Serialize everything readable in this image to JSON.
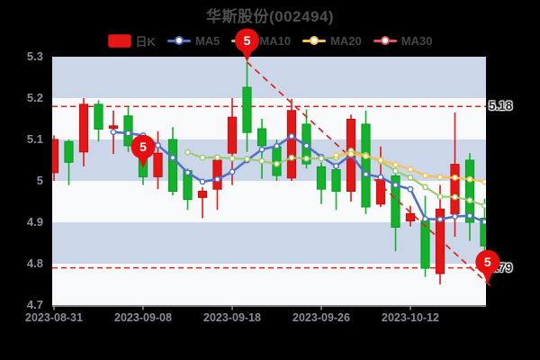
{
  "title": "华斯股份(002494)",
  "legend": [
    {
      "label": "日K",
      "type": "rect",
      "color": "#e51616"
    },
    {
      "label": "MA5",
      "type": "line",
      "color": "#5470c6"
    },
    {
      "label": "MA10",
      "type": "line",
      "color": "#9dcc6d"
    },
    {
      "label": "MA20",
      "type": "line",
      "color": "#f7c04f"
    },
    {
      "label": "MA30",
      "type": "line",
      "color": "#e25562"
    }
  ],
  "chart_data": {
    "type": "candlestick",
    "title": "华斯股份(002494)",
    "ylim": [
      4.7,
      5.3
    ],
    "grid": "striped-bands",
    "legend_position": "top-center",
    "y_ticks": [
      {
        "label": "5.3",
        "value": 5.3
      },
      {
        "label": "5.2",
        "value": 5.2
      },
      {
        "label": "5.1",
        "value": 5.1
      },
      {
        "label": "5",
        "value": 5.0
      },
      {
        "label": "4.9",
        "value": 4.9
      },
      {
        "label": "4.8",
        "value": 4.8
      },
      {
        "label": "4.7",
        "value": 4.7
      }
    ],
    "x_ticks": [
      {
        "label": "2023-08-31",
        "index": 0
      },
      {
        "label": "2023-09-08",
        "index": 6
      },
      {
        "label": "2023-09-18",
        "index": 12
      },
      {
        "label": "2023-09-26",
        "index": 18
      },
      {
        "label": "2023-10-12",
        "index": 24
      }
    ],
    "up_color": "#e51616",
    "down_color": "#12b22b",
    "band_colors": [
      "#ccd6e9",
      "#f8f9fb"
    ],
    "candles": [
      [
        5.02,
        5.1,
        5.0,
        5.11
      ],
      [
        5.095,
        5.045,
        4.99,
        5.1
      ],
      [
        5.07,
        5.185,
        5.035,
        5.2
      ],
      [
        5.185,
        5.125,
        5.095,
        5.195
      ],
      [
        5.127,
        5.133,
        5.065,
        5.17
      ],
      [
        5.157,
        5.085,
        5.07,
        5.18
      ],
      [
        5.06,
        5.01,
        4.99,
        5.08
      ],
      [
        5.01,
        5.067,
        4.98,
        5.12
      ],
      [
        5.1,
        4.975,
        4.965,
        5.13
      ],
      [
        5.025,
        4.955,
        4.93,
        5.03
      ],
      [
        4.96,
        4.975,
        4.91,
        4.985
      ],
      [
        4.98,
        5.05,
        4.93,
        5.056
      ],
      [
        5.067,
        5.154,
        4.99,
        5.2
      ],
      [
        5.226,
        5.117,
        5.07,
        5.287
      ],
      [
        5.126,
        5.085,
        5.005,
        5.15
      ],
      [
        5.083,
        5.013,
        5.0,
        5.1
      ],
      [
        5.007,
        5.17,
        5.0,
        5.198
      ],
      [
        5.137,
        5.041,
        5.03,
        5.173
      ],
      [
        5.034,
        4.98,
        4.944,
        5.045
      ],
      [
        5.027,
        4.975,
        4.93,
        5.03
      ],
      [
        4.975,
        5.149,
        4.95,
        5.16
      ],
      [
        5.137,
        4.937,
        4.92,
        5.17
      ],
      [
        4.944,
        5.003,
        4.937,
        5.083
      ],
      [
        5.012,
        4.888,
        4.83,
        5.03
      ],
      [
        4.903,
        4.921,
        4.89,
        4.94
      ],
      [
        4.904,
        4.789,
        4.768,
        4.964
      ],
      [
        4.776,
        4.932,
        4.75,
        4.99
      ],
      [
        4.92,
        5.04,
        4.865,
        5.165
      ],
      [
        5.05,
        4.9,
        4.855,
        5.067
      ],
      [
        4.91,
        4.843,
        4.83,
        4.957
      ]
    ],
    "series": [
      {
        "name": "MA5",
        "color": "#5470c6",
        "start": 4,
        "values": [
          5.118,
          5.115,
          5.11,
          5.086,
          5.056,
          5.02,
          4.998,
          5.004,
          5.022,
          5.05,
          5.076,
          5.084,
          5.108,
          5.085,
          5.058,
          5.036,
          5.063,
          5.016,
          5.009,
          4.99,
          4.98,
          4.908,
          4.907,
          4.914,
          4.916,
          4.901
        ]
      },
      {
        "name": "MA10",
        "color": "#9dcc6d",
        "start": 9,
        "values": [
          5.069,
          5.056,
          5.057,
          5.054,
          5.053,
          5.048,
          5.041,
          5.056,
          5.054,
          5.054,
          5.056,
          5.073,
          5.062,
          5.047,
          5.024,
          5.008,
          4.985,
          4.962,
          4.961,
          4.953,
          4.94
        ]
      },
      {
        "name": "MA20",
        "color": "#f7c04f",
        "start": 19,
        "values": [
          5.062,
          5.065,
          5.06,
          5.05,
          5.039,
          5.028,
          5.013,
          5.009,
          5.008,
          5.004,
          4.998
        ]
      }
    ],
    "ref_lines": [
      {
        "label": "5.18",
        "value": 5.18,
        "color": "#e2211c"
      },
      {
        "label": "4.79",
        "value": 4.79,
        "color": "#e2211c"
      }
    ],
    "trend_line": {
      "from_index": 13,
      "from_price": 5.287,
      "to_index": 29.4,
      "to_price": 4.746,
      "color": "#e2211c"
    },
    "marker_color": "#e60f0f",
    "markers": [
      {
        "label": "5",
        "index": 13,
        "tip_price": 5.287
      },
      {
        "label": "5",
        "index": 6,
        "tip_price": 5.03
      },
      {
        "label": "5",
        "index": 29.2,
        "tip_price": 4.752
      }
    ]
  }
}
